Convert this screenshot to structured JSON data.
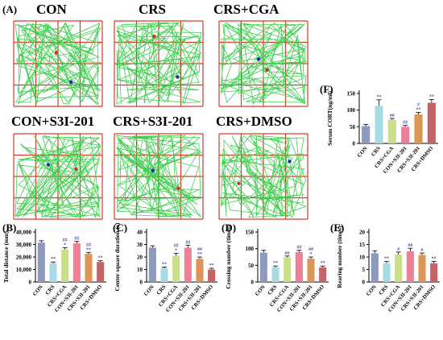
{
  "figure": {
    "panel_A_letter": "(A)",
    "panel_B_letter": "(B)",
    "panel_C_letter": "(C)",
    "panel_D_letter": "(D)",
    "panel_E_letter": "(E)",
    "panel_F_letter": "(F)"
  },
  "tracks": [
    {
      "label": "CON"
    },
    {
      "label": "CRS"
    },
    {
      "label": "CRS+CGA"
    },
    {
      "label": "CON+S3I-201"
    },
    {
      "label": "CRS+S3I-201"
    },
    {
      "label": "CRS+DMSO"
    }
  ],
  "colors": {
    "grid": "#d93a2b",
    "track": "#3fce4e",
    "CON": "#8d9ac0",
    "CRS": "#a7dbe3",
    "CRS+CGA": "#c9df8a",
    "CON+S3I-201": "#ef7f96",
    "CRS+S3I-201": "#dd9556",
    "CRS+DMSO": "#c36466",
    "significance": "#4a4a9a"
  },
  "chart_data": [
    {
      "id": "B",
      "type": "bar",
      "ylabel": "Total distance (mm)",
      "categories": [
        "CON",
        "CRS",
        "CRS+CGA",
        "CON+S3I-201",
        "CRS+S3I-201",
        "CRS+DMSO"
      ],
      "values": [
        31500,
        15000,
        26000,
        31000,
        22500,
        16000
      ],
      "errors": [
        1500,
        1000,
        1500,
        1500,
        1200,
        1000
      ],
      "significance": [
        [
          "",
          ""
        ],
        [
          "",
          "**"
        ],
        [
          "##",
          "*"
        ],
        [
          "##",
          ""
        ],
        [
          "##",
          "**"
        ],
        [
          "",
          "**"
        ]
      ],
      "ylim": [
        0,
        40000
      ],
      "yticks": [
        0,
        10000,
        20000,
        30000,
        40000
      ],
      "ytick_labels": [
        "0",
        "10,000",
        "20,000",
        "30,000",
        "40,000"
      ]
    },
    {
      "id": "C",
      "type": "bar",
      "ylabel": "Center square duration (s)",
      "categories": [
        "CON",
        "CRS",
        "CRS+CGA",
        "CON+S3I-201",
        "CRS+S3I-201",
        "CRS+DMSO"
      ],
      "values": [
        27.5,
        11,
        21,
        27.5,
        18.5,
        10
      ],
      "errors": [
        1.5,
        1,
        2,
        2,
        1.5,
        1
      ],
      "significance": [
        [
          "",
          ""
        ],
        [
          "",
          "**"
        ],
        [
          "##",
          "*"
        ],
        [
          "##",
          ""
        ],
        [
          "##",
          "**"
        ],
        [
          "",
          "**"
        ]
      ],
      "ylim": [
        0,
        40
      ],
      "yticks": [
        0,
        10,
        20,
        30,
        40
      ],
      "ytick_labels": [
        "0",
        "10",
        "20",
        "30",
        "40"
      ]
    },
    {
      "id": "D",
      "type": "bar",
      "ylabel": "Crossing number (times)",
      "categories": [
        "CON",
        "CRS",
        "CRS+CGA",
        "CON+S3I-201",
        "CRS+S3I-201",
        "CRS+DMSO"
      ],
      "values": [
        88,
        44,
        74,
        90,
        70,
        44
      ],
      "errors": [
        7,
        4,
        4,
        5,
        5,
        4
      ],
      "significance": [
        [
          "",
          ""
        ],
        [
          "",
          "**"
        ],
        [
          "##",
          ""
        ],
        [
          "##",
          ""
        ],
        [
          "##",
          "*"
        ],
        [
          "",
          "**"
        ]
      ],
      "ylim": [
        0,
        150
      ],
      "yticks": [
        0,
        50,
        100,
        150
      ],
      "ytick_labels": [
        "0",
        "50",
        "100",
        "150"
      ]
    },
    {
      "id": "E",
      "type": "bar",
      "ylabel": "Rearing number (times)",
      "categories": [
        "CON",
        "CRS",
        "CRS+CGA",
        "CON+S3I-201",
        "CRS+S3I-201",
        "CRS+DMSO"
      ],
      "values": [
        11.5,
        7.5,
        11,
        12.3,
        10.8,
        7.5
      ],
      "errors": [
        1,
        0.7,
        1,
        1.2,
        0.8,
        0.7
      ],
      "significance": [
        [
          "",
          ""
        ],
        [
          "",
          "**"
        ],
        [
          "#",
          ""
        ],
        [
          "##",
          ""
        ],
        [
          "#",
          ""
        ],
        [
          "",
          "**"
        ]
      ],
      "ylim": [
        0,
        20
      ],
      "yticks": [
        0,
        5,
        10,
        15,
        20
      ],
      "ytick_labels": [
        "0",
        "5",
        "10",
        "15",
        "20"
      ]
    },
    {
      "id": "F",
      "type": "bar",
      "ylabel": "Serum CORT(ng/ml)",
      "categories": [
        "CON",
        "CRS",
        "CRS+CGA",
        "CON+S3I-201",
        "CRS+S3I-201",
        "CRS+DMSO"
      ],
      "values": [
        52,
        113,
        71,
        50,
        87,
        122
      ],
      "errors": [
        5,
        18,
        4,
        4,
        6,
        10
      ],
      "significance": [
        [
          "",
          ""
        ],
        [
          "",
          "**"
        ],
        [
          "##",
          ""
        ],
        [
          "##",
          ""
        ],
        [
          "#",
          "**"
        ],
        [
          "",
          "**"
        ]
      ],
      "ylim": [
        0,
        150
      ],
      "yticks": [
        0,
        50,
        100,
        150
      ],
      "ytick_labels": [
        "0",
        "50",
        "100",
        "150"
      ]
    }
  ]
}
